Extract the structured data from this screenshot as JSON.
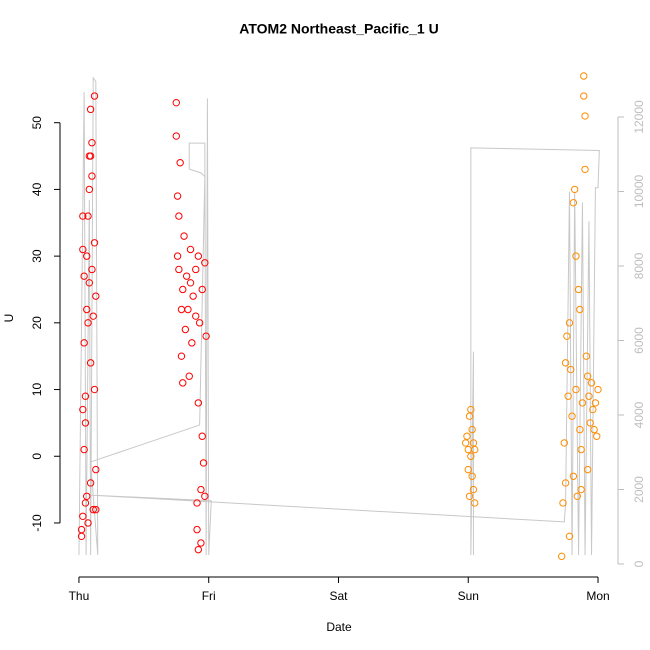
{
  "chart_data": {
    "type": "scatter",
    "title": "ATOM2 Northeast_Pacific_1 U",
    "x_label": "Date",
    "y_label": "U",
    "xlim": [
      -0.146,
      4.154
    ],
    "xticks": [
      {
        "value": 0,
        "label": "Thu"
      },
      {
        "value": 1,
        "label": "Fri"
      },
      {
        "value": 2,
        "label": "Sat"
      },
      {
        "value": 3,
        "label": "Sun"
      },
      {
        "value": 4,
        "label": "Mon"
      }
    ],
    "ylim": [
      -18.1,
      59.4
    ],
    "yticks": [
      -10,
      0,
      10,
      20,
      30,
      40,
      50
    ],
    "y2lim": [
      -349,
      13530
    ],
    "y2ticks": [
      0,
      2000,
      4000,
      6000,
      8000,
      10000,
      12000
    ],
    "y2_color": "#bebebe",
    "series": [
      {
        "type": "line",
        "axis": "y2",
        "color": "#c8c8c8",
        "x": [
          0.0,
          0.04,
          0.055,
          0.08,
          0.09,
          0.11,
          0.13,
          0.145,
          0.09,
          0.93,
          0.97,
          0.94,
          0.85,
          0.85,
          0.97,
          0.98,
          0.99,
          1.0,
          1.02,
          0.09,
          3.74,
          3.75,
          3.78,
          3.8,
          3.82,
          3.85,
          3.88,
          3.9,
          3.93,
          3.95,
          3.98,
          4.0,
          4.01,
          3.02,
          3.02,
          3.04,
          3.04
        ],
        "values": [
          240,
          12670,
          240,
          9770,
          240,
          13050,
          12950,
          240,
          2740,
          3730,
          10400,
          10500,
          10600,
          11300,
          11300,
          240,
          12500,
          240,
          1700,
          1850,
          1130,
          1600,
          10000,
          240,
          10000,
          240,
          9700,
          240,
          9200,
          240,
          10100,
          10100,
          11100,
          11170,
          240,
          5700,
          240
        ]
      },
      {
        "color": "#ff0000",
        "x": [
          0.02,
          0.02,
          0.03,
          0.03,
          0.03,
          0.03,
          0.04,
          0.04,
          0.05,
          0.05,
          0.06,
          0.06,
          0.06,
          0.07,
          0.07,
          0.07,
          0.08,
          0.08,
          0.09,
          0.09,
          0.09,
          0.1,
          0.1,
          0.1,
          0.11,
          0.11,
          0.12,
          0.12,
          0.12,
          0.13,
          0.13,
          0.13,
          0.05,
          0.04,
          0.08,
          0.09,
          0.75,
          0.75,
          0.76,
          0.76,
          0.77,
          0.77,
          0.78,
          0.79,
          0.79,
          0.8,
          0.8,
          0.81,
          0.82,
          0.83,
          0.84,
          0.85,
          0.86,
          0.87,
          0.88,
          0.9,
          0.91,
          0.91,
          0.92,
          0.92,
          0.92,
          0.93,
          0.94,
          0.95,
          0.95,
          0.96,
          0.97,
          0.97,
          0.98,
          0.94,
          0.9,
          0.86
        ],
        "values": [
          -11,
          -12,
          -9,
          7,
          36,
          31,
          27,
          17,
          -7,
          9,
          22,
          30,
          -6,
          -10,
          20,
          36,
          40,
          45,
          52,
          14,
          -4,
          47,
          42,
          28,
          21,
          -8,
          54,
          32,
          10,
          -2,
          24,
          -8,
          5,
          1,
          26,
          45,
          53,
          48,
          39,
          30,
          36,
          28,
          44,
          22,
          15,
          25,
          11,
          33,
          19,
          27,
          22,
          12,
          26,
          17,
          24,
          28,
          -7,
          -11,
          -14,
          8,
          30,
          20,
          -5,
          25,
          3,
          -1,
          29,
          -6,
          18,
          -13,
          21,
          31
        ]
      },
      {
        "color": "#ff8c00",
        "x": [
          2.98,
          2.99,
          3.0,
          3.0,
          3.01,
          3.01,
          3.02,
          3.02,
          3.03,
          3.03,
          3.04,
          3.04,
          3.05,
          3.05,
          3.72,
          3.73,
          3.74,
          3.75,
          3.75,
          3.76,
          3.77,
          3.78,
          3.78,
          3.79,
          3.8,
          3.81,
          3.81,
          3.82,
          3.83,
          3.83,
          3.84,
          3.85,
          3.86,
          3.86,
          3.87,
          3.88,
          3.89,
          3.89,
          3.9,
          3.9,
          3.91,
          3.92,
          3.93,
          3.94,
          3.95,
          3.96,
          3.97,
          3.98,
          3.99,
          4.0,
          3.87,
          3.92
        ],
        "values": [
          2,
          3,
          -2,
          1,
          -6,
          6,
          0,
          7,
          -3,
          4,
          -5,
          2,
          -7,
          1,
          -15,
          -7,
          2,
          14,
          -4,
          18,
          9,
          -12,
          20,
          13,
          6,
          38,
          -3,
          40,
          10,
          30,
          -6,
          25,
          4,
          22,
          1,
          8,
          54,
          57,
          51,
          43,
          15,
          12,
          9,
          5,
          11,
          7,
          4,
          8,
          3,
          10,
          -5,
          -2
        ]
      }
    ]
  }
}
